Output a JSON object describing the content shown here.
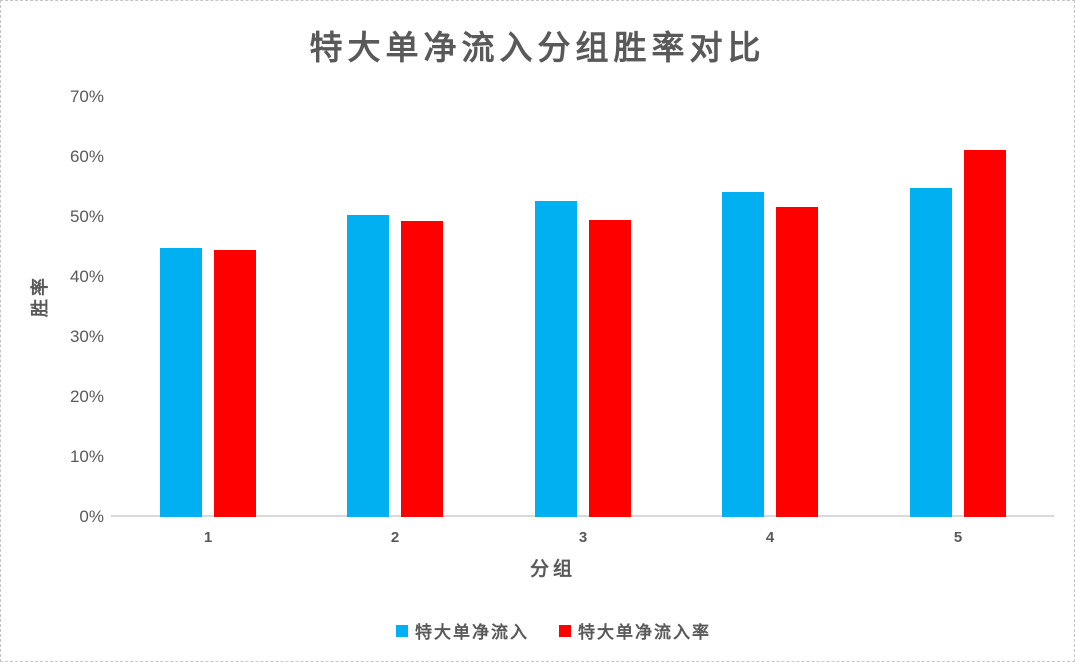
{
  "window": {
    "background": "#ffffff",
    "frame_border_color": "#c6c6c6"
  },
  "chart_data": {
    "type": "bar",
    "title": "特大单净流入分组胜率对比",
    "xlabel": "分组",
    "ylabel": "胜率",
    "categories": [
      "1",
      "2",
      "3",
      "4",
      "5"
    ],
    "series": [
      {
        "name": "特大单净流入",
        "color": "#00B0F0",
        "values": [
          44.8,
          50.4,
          52.7,
          54.2,
          54.9
        ]
      },
      {
        "name": "特大单净流入率",
        "color": "#FF0000",
        "values": [
          44.5,
          49.3,
          49.5,
          51.6,
          61.1
        ]
      }
    ],
    "value_unit": "%",
    "y_axis": {
      "min": 0,
      "max": 70,
      "step": 10,
      "tick_labels": [
        "0%",
        "10%",
        "20%",
        "30%",
        "40%",
        "50%",
        "60%",
        "70%"
      ]
    },
    "grid": false,
    "legend_position": "bottom",
    "styles": {
      "text_color": "#595959",
      "axis_line_color": "#D9D9D9"
    }
  }
}
